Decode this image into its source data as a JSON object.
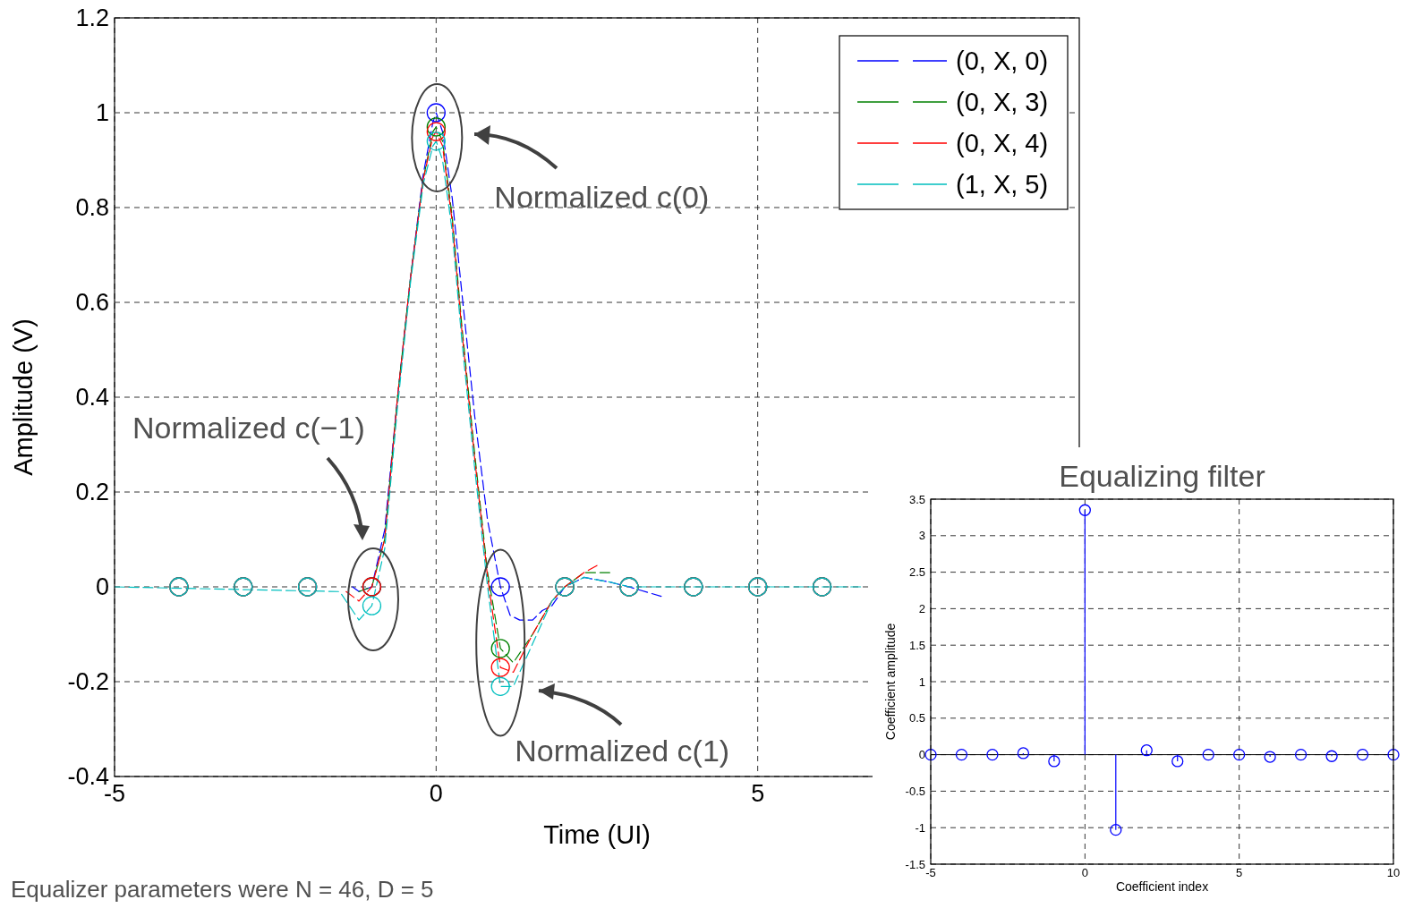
{
  "chart_data": [
    {
      "type": "line",
      "xlabel": "Time (UI)",
      "ylabel": "Amplitude (V)",
      "xlim": [
        -5,
        10
      ],
      "xticks": [
        -5,
        0,
        5
      ],
      "ylim": [
        -0.4,
        1.2
      ],
      "yticks": [
        -0.4,
        -0.2,
        0,
        0.2,
        0.4,
        0.6,
        0.8,
        1,
        1.2
      ],
      "grid": true,
      "legend": "top right",
      "line_style": "dashed",
      "series": [
        {
          "name": "(0, X, 0)",
          "color": "#0000ff",
          "x": [
            -1.3,
            -1.2,
            -1,
            -0.8,
            -0.6,
            -0.4,
            -0.2,
            -0.05,
            0,
            0.1,
            0.25,
            0.4,
            0.6,
            0.8,
            1,
            1.15,
            1.3,
            1.5,
            1.65,
            1.8,
            2,
            2.3,
            2.7,
            3,
            3.5
          ],
          "values": [
            0,
            -0.01,
            0,
            0.12,
            0.4,
            0.65,
            0.87,
            0.98,
            1.0,
            0.96,
            0.82,
            0.62,
            0.36,
            0.14,
            0,
            -0.06,
            -0.07,
            -0.07,
            -0.05,
            -0.04,
            0,
            0.02,
            0.01,
            0,
            -0.02
          ]
        },
        {
          "name": "(0, X, 3)",
          "color": "#008000",
          "x": [
            -1.2,
            -1,
            -0.8,
            -0.6,
            -0.4,
            -0.2,
            -0.05,
            0,
            0.1,
            0.25,
            0.4,
            0.6,
            0.8,
            1,
            1.2,
            1.5,
            1.8,
            2,
            2.3,
            2.7
          ],
          "values": [
            -0.01,
            0,
            0.1,
            0.4,
            0.65,
            0.86,
            0.96,
            0.97,
            0.94,
            0.78,
            0.55,
            0.28,
            0.03,
            -0.13,
            -0.16,
            -0.1,
            -0.03,
            0,
            0.03,
            0.03
          ]
        },
        {
          "name": "(0, X, 4)",
          "color": "#ff0000",
          "x": [
            -1.4,
            -1.2,
            -1,
            -0.8,
            -0.6,
            -0.4,
            -0.2,
            -0.05,
            0,
            0.1,
            0.25,
            0.4,
            0.6,
            0.8,
            1,
            1.2,
            1.5,
            1.8,
            2,
            2.3,
            2.5
          ],
          "values": [
            -0.01,
            -0.03,
            0,
            0.1,
            0.4,
            0.65,
            0.86,
            0.95,
            0.96,
            0.93,
            0.77,
            0.54,
            0.27,
            0.02,
            -0.17,
            -0.18,
            -0.1,
            -0.03,
            0,
            0.03,
            0.045
          ]
        },
        {
          "name": "(1, X, 5)",
          "color": "#00bfbf",
          "x": [
            -5,
            -1.5,
            -1.3,
            -1.2,
            -1,
            -0.8,
            -0.6,
            -0.4,
            -0.2,
            -0.05,
            0,
            0.1,
            0.25,
            0.4,
            0.6,
            0.8,
            1,
            1.2,
            1.5,
            1.8,
            2,
            2.3,
            2.7,
            3,
            3.5,
            4,
            5,
            6.6
          ],
          "values": [
            0,
            -0.01,
            -0.05,
            -0.07,
            -0.04,
            0.08,
            0.38,
            0.64,
            0.85,
            0.93,
            0.94,
            0.9,
            0.75,
            0.52,
            0.25,
            0.0,
            -0.21,
            -0.21,
            -0.12,
            -0.03,
            0,
            0.02,
            0.01,
            0,
            0,
            0,
            0,
            0.0
          ]
        },
        {
          "type": "scatter",
          "marker": "circle",
          "color": "#0000ff",
          "x": [
            -4,
            -3,
            -2,
            -1,
            0,
            1,
            2,
            3,
            4,
            5,
            6
          ],
          "values": [
            0,
            0,
            0,
            0,
            1,
            0,
            0,
            0,
            0,
            0,
            0
          ]
        },
        {
          "type": "scatter",
          "marker": "circle",
          "color": "#008000",
          "x": [
            -4,
            -3,
            -2,
            -1,
            0,
            1,
            2,
            3,
            4,
            5,
            6
          ],
          "values": [
            0,
            0,
            0,
            0,
            0.97,
            -0.13,
            0,
            0,
            0,
            0,
            0
          ]
        },
        {
          "type": "scatter",
          "marker": "circle",
          "color": "#ff0000",
          "x": [
            -4,
            -3,
            -2,
            -1,
            0,
            1,
            2,
            3,
            4,
            5,
            6
          ],
          "values": [
            0,
            0,
            0,
            0,
            0.96,
            -0.17,
            0,
            0,
            0,
            0,
            0
          ]
        },
        {
          "type": "scatter",
          "marker": "circle",
          "color": "#00bfbf",
          "x": [
            -4,
            -3,
            -2,
            -1,
            0,
            1,
            2,
            3,
            4,
            5,
            6
          ],
          "values": [
            0,
            0,
            0,
            -0.04,
            0.94,
            -0.21,
            0,
            0,
            0,
            0,
            0
          ]
        }
      ],
      "annotations": [
        {
          "text": "Normalized c(0)",
          "x": 0,
          "y": 1
        },
        {
          "text": "Normalized c(1)",
          "x": 1,
          "y": -0.15
        },
        "Normalized c(−1)",
        "Equalizer parameters were N = 46, D = 5"
      ]
    },
    {
      "type": "lollipop",
      "title": "Equalizing filter",
      "xlabel": "Coefficient index",
      "ylabel": "Coefficient amplitude",
      "xlim": [
        -5,
        10
      ],
      "xticks": [
        -5,
        0,
        5,
        10
      ],
      "ylim": [
        -1.5,
        3.5
      ],
      "yticks": [
        -1.5,
        -1,
        -0.5,
        0,
        0.5,
        1,
        1.5,
        2,
        2.5,
        3,
        3.5
      ],
      "grid": true,
      "marker": "circle",
      "color": "#0000ff",
      "x": [
        -5,
        -4,
        -3,
        -2,
        -1,
        0,
        1,
        2,
        3,
        4,
        5,
        6,
        7,
        8,
        9,
        10
      ],
      "values": [
        0,
        0,
        0,
        0.02,
        -0.09,
        3.35,
        -1.03,
        0.06,
        -0.09,
        0,
        0,
        -0.03,
        0,
        -0.02,
        0,
        0
      ]
    }
  ]
}
